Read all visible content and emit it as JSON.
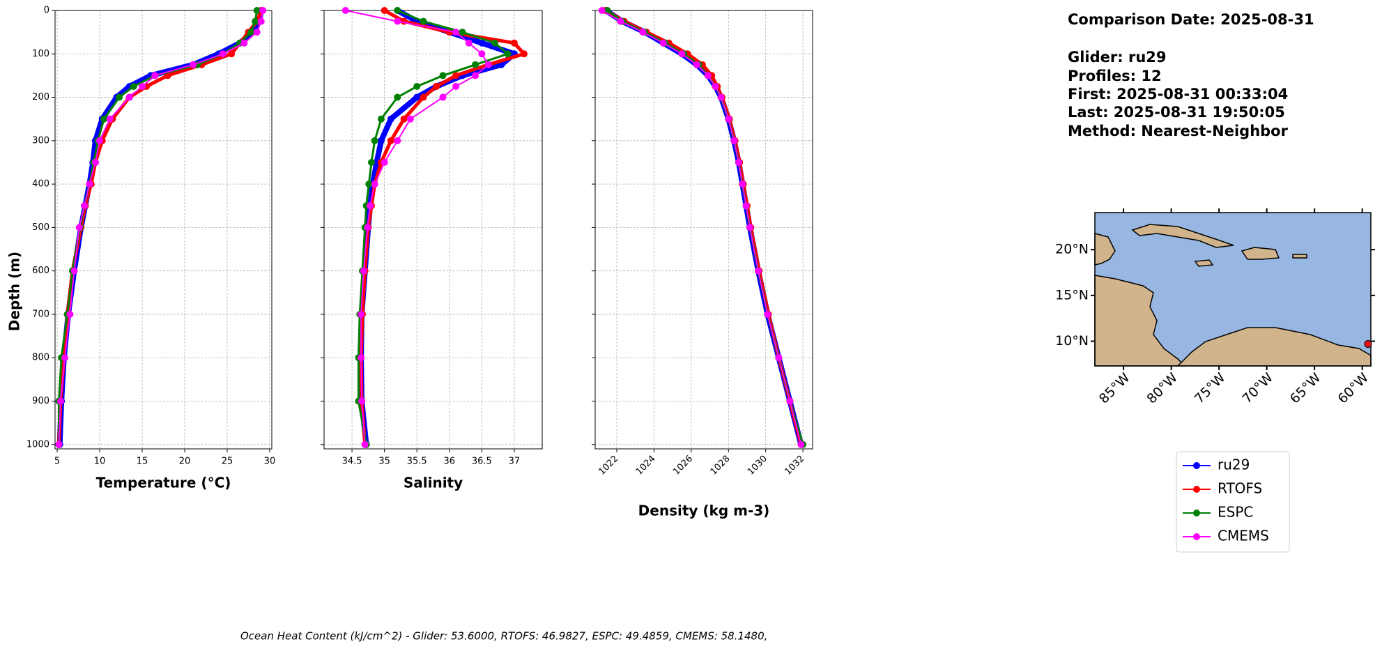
{
  "chart_data": [
    {
      "type": "line",
      "xlabel": "Temperature (°C)",
      "ylabel": "Depth (m)",
      "xlim": [
        4.75,
        30.25
      ],
      "xticks": [
        5,
        10,
        15,
        20,
        25,
        30
      ],
      "ylim": [
        1010,
        0
      ],
      "yticks": [
        0,
        100,
        200,
        300,
        400,
        500,
        600,
        700,
        800,
        900,
        1000
      ],
      "ytick_labels": true,
      "grid": true,
      "y": [
        0,
        25,
        50,
        75,
        100,
        125,
        150,
        175,
        200,
        250,
        300,
        350,
        400,
        450,
        500,
        600,
        700,
        800,
        900,
        1000
      ],
      "series": [
        {
          "name": "ru29",
          "color": "#0000ff",
          "values": [
            29,
            28.8,
            28,
            26.5,
            24,
            21,
            16,
            13.5,
            12,
            10.3,
            9.5,
            9.2,
            8.8,
            8.3,
            7.8,
            7,
            6.3,
            5.8,
            5.5,
            5.3
          ]
        },
        {
          "name": "RTOFS",
          "color": "#ff0000",
          "values": [
            29,
            28.5,
            27.5,
            26.5,
            25.5,
            22,
            18,
            15.5,
            13.5,
            11.5,
            10.3,
            9.5,
            9,
            8.3,
            7.8,
            6.8,
            6.2,
            5.8,
            5.4,
            5.2
          ]
        },
        {
          "name": "ESPC",
          "color": "#008000",
          "values": [
            28.5,
            28.3,
            27.8,
            26.5,
            24.5,
            21.5,
            16.5,
            14,
            12.3,
            10.5,
            9.8,
            9.3,
            8.8,
            8.2,
            7.7,
            6.8,
            6.2,
            5.5,
            5.2,
            5.2
          ]
        },
        {
          "name": "CMEMS",
          "color": "#ff00ff",
          "values": [
            29.2,
            29,
            28.5,
            27,
            24.5,
            21,
            16.5,
            15,
            13.5,
            11.2,
            10,
            9.5,
            8.8,
            8.2,
            7.6,
            7,
            6.5,
            5.9,
            5.4,
            5.2
          ]
        }
      ]
    },
    {
      "type": "line",
      "xlabel": "Salinity",
      "xlim": [
        34.07,
        37.43
      ],
      "xticks": [
        34.5,
        35.0,
        35.5,
        36.0,
        36.5,
        37.0
      ],
      "ylim": [
        1010,
        0
      ],
      "yticks": [
        0,
        100,
        200,
        300,
        400,
        500,
        600,
        700,
        800,
        900,
        1000
      ],
      "ytick_labels": false,
      "grid": true,
      "y": [
        0,
        25,
        50,
        75,
        100,
        125,
        150,
        175,
        200,
        250,
        300,
        350,
        400,
        450,
        500,
        600,
        700,
        800,
        900,
        1000
      ],
      "series": [
        {
          "color": "#0000ff",
          "values": [
            35.2,
            35.5,
            36,
            36.5,
            37,
            36.8,
            36.2,
            35.8,
            35.5,
            35.1,
            34.95,
            34.88,
            34.82,
            34.78,
            34.75,
            34.7,
            34.65,
            34.64,
            34.65,
            34.72
          ]
        },
        {
          "color": "#ff0000",
          "values": [
            35.0,
            35.3,
            36,
            37.0,
            37.15,
            36.6,
            36.1,
            35.8,
            35.6,
            35.3,
            35.1,
            34.95,
            34.85,
            34.8,
            34.75,
            34.7,
            34.66,
            34.64,
            34.65,
            34.7
          ]
        },
        {
          "color": "#008000",
          "values": [
            35.2,
            35.6,
            36.2,
            36.7,
            36.9,
            36.4,
            35.9,
            35.5,
            35.2,
            34.95,
            34.85,
            34.8,
            34.76,
            34.72,
            34.7,
            34.66,
            34.62,
            34.6,
            34.6,
            34.72
          ]
        },
        {
          "color": "#ff00ff",
          "values": [
            34.4,
            35.2,
            36.1,
            36.3,
            36.5,
            36.6,
            36.4,
            36.1,
            35.9,
            35.4,
            35.2,
            35.0,
            34.85,
            34.78,
            34.74,
            34.68,
            34.64,
            34.64,
            34.65,
            34.7
          ]
        }
      ]
    },
    {
      "type": "line",
      "xlabel": "Density (kg m-3)",
      "xlim": [
        1020.84,
        1032.52
      ],
      "xticks": [
        1022,
        1024,
        1026,
        1028,
        1030,
        1032
      ],
      "xtick_rotate": true,
      "ylim": [
        1010,
        0
      ],
      "yticks": [
        0,
        100,
        200,
        300,
        400,
        500,
        600,
        700,
        800,
        900,
        1000
      ],
      "ytick_labels": false,
      "grid": true,
      "y": [
        0,
        25,
        50,
        75,
        100,
        125,
        150,
        175,
        200,
        250,
        300,
        350,
        400,
        450,
        500,
        600,
        700,
        800,
        900,
        1000
      ],
      "series": [
        {
          "color": "#0000ff",
          "values": [
            1021.4,
            1022.3,
            1023.5,
            1024.5,
            1025.5,
            1026.3,
            1026.9,
            1027.3,
            1027.6,
            1028.0,
            1028.3,
            1028.55,
            1028.75,
            1028.95,
            1029.15,
            1029.6,
            1030.1,
            1030.7,
            1031.3,
            1031.9
          ]
        },
        {
          "color": "#ff0000",
          "values": [
            1021.4,
            1022.4,
            1023.6,
            1024.8,
            1025.8,
            1026.6,
            1027.1,
            1027.4,
            1027.65,
            1028.05,
            1028.35,
            1028.6,
            1028.8,
            1029.0,
            1029.2,
            1029.65,
            1030.15,
            1030.7,
            1031.3,
            1031.9
          ]
        },
        {
          "color": "#008000",
          "values": [
            1021.5,
            1022.3,
            1023.5,
            1024.6,
            1025.6,
            1026.4,
            1026.9,
            1027.3,
            1027.6,
            1028.0,
            1028.3,
            1028.55,
            1028.75,
            1028.95,
            1029.15,
            1029.6,
            1030.1,
            1030.7,
            1031.3,
            1032.0
          ]
        },
        {
          "color": "#ff00ff",
          "values": [
            1021.2,
            1022.2,
            1023.4,
            1024.5,
            1025.5,
            1026.3,
            1026.9,
            1027.3,
            1027.6,
            1028.0,
            1028.3,
            1028.55,
            1028.75,
            1028.95,
            1029.15,
            1029.6,
            1030.1,
            1030.7,
            1031.3,
            1031.9
          ]
        }
      ]
    }
  ],
  "info": [
    "Comparison Date: 2025-08-31",
    "Glider: ru29",
    "Profiles: 12",
    "First: 2025-08-31 00:33:04",
    "Last: 2025-08-31 19:50:05",
    "Method: Nearest-Neighbor"
  ],
  "map": {
    "xlim": [
      -88,
      -59.1
    ],
    "ylim": [
      7.3,
      24.05
    ],
    "xticks": [
      {
        "value": -85,
        "label": "85°W"
      },
      {
        "value": -80,
        "label": "80°W"
      },
      {
        "value": -75,
        "label": "75°W"
      },
      {
        "value": -70,
        "label": "70°W"
      },
      {
        "value": -65,
        "label": "65°W"
      },
      {
        "value": -60,
        "label": "60°W"
      }
    ],
    "yticks": [
      {
        "value": 10,
        "label": "10°N"
      },
      {
        "value": 15,
        "label": "15°N"
      },
      {
        "value": 20,
        "label": "20°N"
      }
    ],
    "marker": {
      "lon": -59.4,
      "lat": 9.7,
      "color": "#e8141c"
    }
  },
  "footer": "Ocean Heat Content (kJ/cm^2) - Glider: 53.6000,  RTOFS: 46.9827,  ESPC: 49.4859,  CMEMS: 58.1480,"
}
